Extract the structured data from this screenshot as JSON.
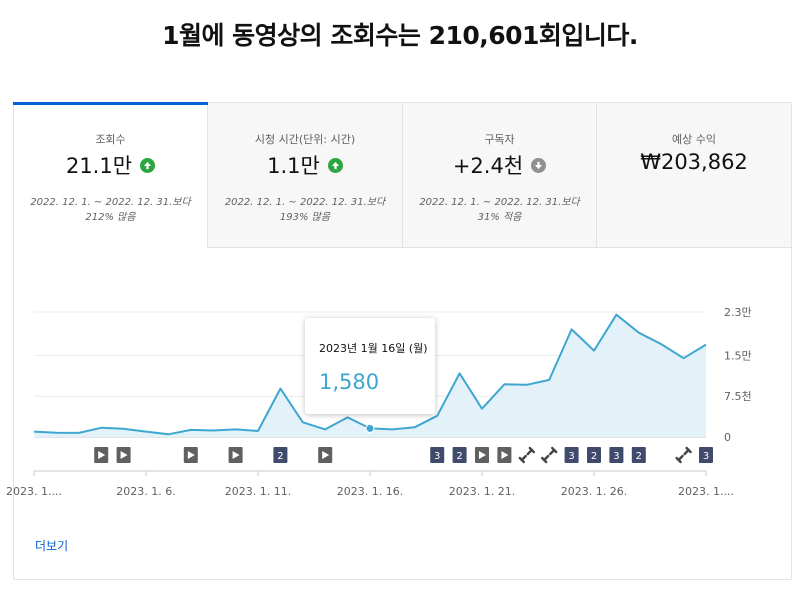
{
  "headline": "1월에 동영상의 조회수는 210,601회입니다.",
  "tabs": [
    {
      "label": "조회수",
      "value": "21.1만",
      "trend": "up",
      "compare": "2022. 12. 1. ~ 2022. 12. 31.보다 212% 많음"
    },
    {
      "label": "시청 시간(단위: 시간)",
      "value": "1.1만",
      "trend": "up",
      "compare": "2022. 12. 1. ~ 2022. 12. 31.보다 193% 많음"
    },
    {
      "label": "구독자",
      "value": "+2.4천",
      "trend": "down",
      "compare": "2022. 12. 1. ~ 2022. 12. 31.보다 31% 적음"
    },
    {
      "label": "예상 수익",
      "value": "₩203,862",
      "trend": "",
      "compare": ""
    }
  ],
  "tooltip": {
    "date": "2023년 1월 16일 (월)",
    "value": "1,580"
  },
  "more_link": "더보기",
  "colors": {
    "accent": "#065fd4",
    "line": "#3ea6d0",
    "fill": "#e3f2f9",
    "trend_up": "#2ba640",
    "trend_down": "#909090",
    "badge": "#3f4a6d"
  },
  "chart_data": {
    "type": "area",
    "x": [
      "2023. 1. 1.",
      "2023. 1. 2.",
      "2023. 1. 3.",
      "2023. 1. 4.",
      "2023. 1. 5.",
      "2023. 1. 6.",
      "2023. 1. 7.",
      "2023. 1. 8.",
      "2023. 1. 9.",
      "2023. 1. 10.",
      "2023. 1. 11.",
      "2023. 1. 12.",
      "2023. 1. 13.",
      "2023. 1. 14.",
      "2023. 1. 15.",
      "2023. 1. 16.",
      "2023. 1. 17.",
      "2023. 1. 18.",
      "2023. 1. 19.",
      "2023. 1. 20.",
      "2023. 1. 21.",
      "2023. 1. 22.",
      "2023. 1. 23.",
      "2023. 1. 24.",
      "2023. 1. 25.",
      "2023. 1. 26.",
      "2023. 1. 27.",
      "2023. 1. 28.",
      "2023. 1. 29.",
      "2023. 1. 30.",
      "2023. 1. 31."
    ],
    "values": [
      1000,
      800,
      750,
      1700,
      1500,
      1000,
      500,
      1300,
      1200,
      1400,
      1100,
      8900,
      2700,
      1400,
      3600,
      1580,
      1400,
      1800,
      3900,
      11700,
      5200,
      9700,
      9600,
      10500,
      19800,
      15900,
      22500,
      19200,
      17100,
      14500,
      17000
    ],
    "ylim": [
      0,
      23000
    ],
    "yticks": [
      {
        "value": 0,
        "label": "0"
      },
      {
        "value": 7500,
        "label": "7.5천"
      },
      {
        "value": 15000,
        "label": "1.5만"
      },
      {
        "value": 23000,
        "label": "2.3만"
      }
    ],
    "xtick_labels": [
      {
        "index": 0,
        "label": "2023. 1...."
      },
      {
        "index": 5,
        "label": "2023. 1. 6."
      },
      {
        "index": 10,
        "label": "2023. 1. 11."
      },
      {
        "index": 15,
        "label": "2023. 1. 16."
      },
      {
        "index": 20,
        "label": "2023. 1. 21."
      },
      {
        "index": 25,
        "label": "2023. 1. 26."
      },
      {
        "index": 30,
        "label": "2023. 1...."
      }
    ],
    "highlight_index": 15,
    "grid": true,
    "events": [
      {
        "index": 3,
        "kind": "play",
        "label": ""
      },
      {
        "index": 4,
        "kind": "play",
        "label": ""
      },
      {
        "index": 7,
        "kind": "play",
        "label": ""
      },
      {
        "index": 9,
        "kind": "play",
        "label": ""
      },
      {
        "index": 11,
        "kind": "number",
        "label": "2"
      },
      {
        "index": 13,
        "kind": "play",
        "label": ""
      },
      {
        "index": 18,
        "kind": "number",
        "label": "3"
      },
      {
        "index": 19,
        "kind": "number",
        "label": "2"
      },
      {
        "index": 20,
        "kind": "play",
        "label": ""
      },
      {
        "index": 21,
        "kind": "play",
        "label": ""
      },
      {
        "index": 22,
        "kind": "link",
        "label": ""
      },
      {
        "index": 23,
        "kind": "link",
        "label": ""
      },
      {
        "index": 24,
        "kind": "number",
        "label": "3"
      },
      {
        "index": 25,
        "kind": "number",
        "label": "2"
      },
      {
        "index": 26,
        "kind": "number",
        "label": "3"
      },
      {
        "index": 27,
        "kind": "number",
        "label": "2"
      },
      {
        "index": 29,
        "kind": "link",
        "label": ""
      },
      {
        "index": 30,
        "kind": "number",
        "label": "3"
      }
    ]
  }
}
